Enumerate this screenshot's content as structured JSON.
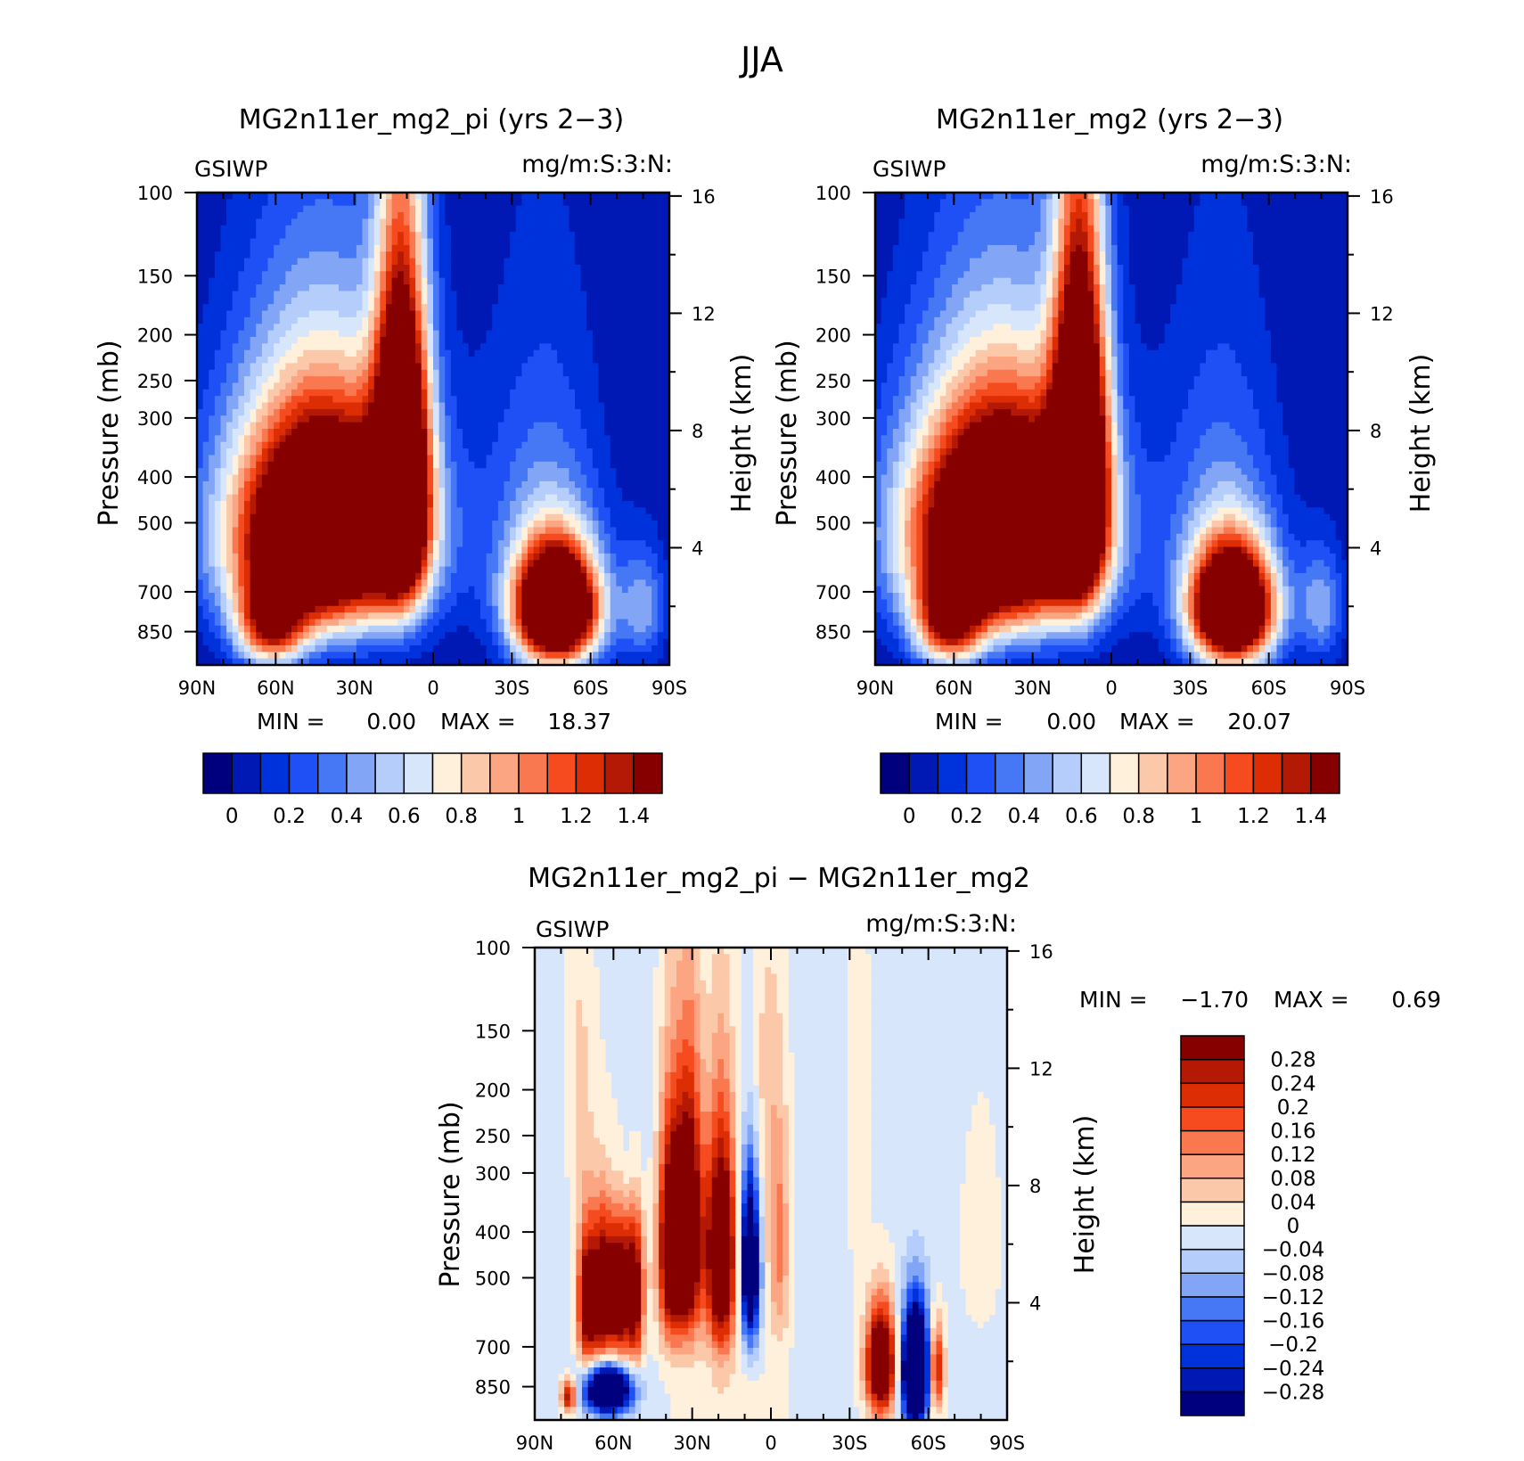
{
  "figure": {
    "title": "JJA"
  },
  "colors": {
    "abs": [
      "#00007f",
      "#0019b4",
      "#0032dc",
      "#1e50f5",
      "#4678f5",
      "#82a5f5",
      "#b4cdfa",
      "#d7e6fa",
      "#fff0dc",
      "#fcc8aa",
      "#fca582",
      "#fa7850",
      "#f54b1e",
      "#dc2d05",
      "#b41905",
      "#870000"
    ],
    "diff": [
      "#00007f",
      "#0019b4",
      "#0032dc",
      "#1e50f5",
      "#4678f5",
      "#82a5f5",
      "#b4cdfa",
      "#d7e6fa",
      "#fff0dc",
      "#fcc8aa",
      "#fca582",
      "#fa7850",
      "#f54b1e",
      "#dc2d05",
      "#b41905",
      "#870000"
    ]
  },
  "chart_data": [
    {
      "type": "contour",
      "title": "MG2n11er_mg2_pi (yrs 2−3)",
      "left_label": "GSIWP",
      "right_label": "mg/m:S:3:N:",
      "ylabel": "Pressure (mb)",
      "ylabel_right": "Height (km)",
      "x_tick_labels": [
        "90N",
        "60N",
        "30N",
        "0",
        "30S",
        "60S",
        "90S"
      ],
      "x_ticks_lat": [
        90,
        60,
        30,
        0,
        -30,
        -60,
        -90
      ],
      "y_tick_labels": [
        "100",
        "150",
        "200",
        "250",
        "300",
        "400",
        "500",
        "700",
        "850"
      ],
      "y_ticks_mb": [
        100,
        150,
        200,
        250,
        300,
        400,
        500,
        700,
        850
      ],
      "height_tick_labels": [
        "16",
        "12",
        "8",
        "4"
      ],
      "height_ticks_km": [
        16,
        12,
        8,
        4
      ],
      "ylim_mb": [
        100,
        1000
      ],
      "min_label": "MIN =",
      "min_value": "0.00",
      "max_label": "MAX =",
      "max_value": "18.37",
      "colorbar_labels": [
        "0",
        "0.2",
        "0.4",
        "0.6",
        "0.8",
        "1",
        "1.2",
        "1.4"
      ],
      "levels": [
        0,
        0.1,
        0.2,
        0.3,
        0.4,
        0.5,
        0.6,
        0.7,
        0.8,
        0.9,
        1,
        1.1,
        1.2,
        1.3,
        1.4
      ],
      "field": {
        "background": 0,
        "blobs": [
          {
            "lat": 42,
            "p": 520,
            "slat": 24,
            "sp": 200,
            "amp": 2.6
          },
          {
            "lat": 12,
            "p": 380,
            "slat": 7,
            "sp": 210,
            "amp": 2.2
          },
          {
            "lat": 62,
            "p": 820,
            "slat": 9,
            "sp": 120,
            "amp": 1.2
          },
          {
            "lat": -47,
            "p": 760,
            "slat": 11,
            "sp": 150,
            "amp": 2.6
          },
          {
            "lat": -42,
            "p": 480,
            "slat": 16,
            "sp": 250,
            "amp": 0.35
          },
          {
            "lat": -80,
            "p": 750,
            "slat": 6,
            "sp": 150,
            "amp": 0.45
          }
        ]
      }
    },
    {
      "type": "contour",
      "title": "MG2n11er_mg2 (yrs 2−3)",
      "left_label": "GSIWP",
      "right_label": "mg/m:S:3:N:",
      "ylabel": "Pressure (mb)",
      "ylabel_right": "Height (km)",
      "x_tick_labels": [
        "90N",
        "60N",
        "30N",
        "0",
        "30S",
        "60S",
        "90S"
      ],
      "x_ticks_lat": [
        90,
        60,
        30,
        0,
        -30,
        -60,
        -90
      ],
      "y_tick_labels": [
        "100",
        "150",
        "200",
        "250",
        "300",
        "400",
        "500",
        "700",
        "850"
      ],
      "y_ticks_mb": [
        100,
        150,
        200,
        250,
        300,
        400,
        500,
        700,
        850
      ],
      "height_tick_labels": [
        "16",
        "12",
        "8",
        "4"
      ],
      "height_ticks_km": [
        16,
        12,
        8,
        4
      ],
      "ylim_mb": [
        100,
        1000
      ],
      "min_label": "MIN =",
      "min_value": "0.00",
      "max_label": "MAX =",
      "max_value": "20.07",
      "colorbar_labels": [
        "0",
        "0.2",
        "0.4",
        "0.6",
        "0.8",
        "1",
        "1.2",
        "1.4"
      ],
      "levels": [
        0,
        0.1,
        0.2,
        0.3,
        0.4,
        0.5,
        0.6,
        0.7,
        0.8,
        0.9,
        1,
        1.1,
        1.2,
        1.3,
        1.4
      ],
      "field": {
        "background": 0,
        "blobs": [
          {
            "lat": 42,
            "p": 520,
            "slat": 24,
            "sp": 200,
            "amp": 2.7
          },
          {
            "lat": 12,
            "p": 370,
            "slat": 7,
            "sp": 215,
            "amp": 2.3
          },
          {
            "lat": 62,
            "p": 820,
            "slat": 9,
            "sp": 120,
            "amp": 1.2
          },
          {
            "lat": -46,
            "p": 760,
            "slat": 11,
            "sp": 150,
            "amp": 2.5
          },
          {
            "lat": -42,
            "p": 480,
            "slat": 16,
            "sp": 250,
            "amp": 0.35
          },
          {
            "lat": -80,
            "p": 750,
            "slat": 6,
            "sp": 150,
            "amp": 0.45
          }
        ]
      }
    },
    {
      "type": "contour",
      "title": "MG2n11er_mg2_pi − MG2n11er_mg2",
      "left_label": "GSIWP",
      "right_label": "mg/m:S:3:N:",
      "ylabel": "Pressure (mb)",
      "ylabel_right": "Height (km)",
      "x_tick_labels": [
        "90N",
        "60N",
        "30N",
        "0",
        "30S",
        "60S",
        "90S"
      ],
      "x_ticks_lat": [
        90,
        60,
        30,
        0,
        -30,
        -60,
        -90
      ],
      "y_tick_labels": [
        "100",
        "150",
        "200",
        "250",
        "300",
        "400",
        "500",
        "700",
        "850"
      ],
      "y_ticks_mb": [
        100,
        150,
        200,
        250,
        300,
        400,
        500,
        700,
        850
      ],
      "height_tick_labels": [
        "16",
        "12",
        "8",
        "4"
      ],
      "height_ticks_km": [
        16,
        12,
        8,
        4
      ],
      "ylim_mb": [
        100,
        1000
      ],
      "min_label": "MIN =",
      "min_value": "−1.70",
      "max_label": "MAX =",
      "max_value": "0.69",
      "colorbar_labels": [
        "0.28",
        "0.24",
        "0.2",
        "0.16",
        "0.12",
        "0.08",
        "0.04",
        "0",
        "−0.04",
        "−0.08",
        "−0.12",
        "−0.16",
        "−0.2",
        "−0.24",
        "−0.28"
      ],
      "levels": [
        -0.28,
        -0.24,
        -0.2,
        -0.16,
        -0.12,
        -0.08,
        -0.04,
        0,
        0.04,
        0.08,
        0.12,
        0.16,
        0.2,
        0.24,
        0.28
      ],
      "field": {
        "background": -0.015,
        "blobs": [
          {
            "lat": 70,
            "p": 560,
            "slat": 2.6,
            "sp": 140,
            "amp": 0.4
          },
          {
            "lat": 64,
            "p": 540,
            "slat": 2.6,
            "sp": 140,
            "amp": 0.4
          },
          {
            "lat": 58,
            "p": 540,
            "slat": 2.6,
            "sp": 140,
            "amp": 0.38
          },
          {
            "lat": 52,
            "p": 540,
            "slat": 2.6,
            "sp": 140,
            "amp": 0.38
          },
          {
            "lat": 38,
            "p": 430,
            "slat": 3.5,
            "sp": 160,
            "amp": 0.45
          },
          {
            "lat": 31,
            "p": 400,
            "slat": 3.5,
            "sp": 170,
            "amp": 0.45
          },
          {
            "lat": 19,
            "p": 450,
            "slat": 4,
            "sp": 170,
            "amp": 0.5
          },
          {
            "lat": 8,
            "p": 470,
            "slat": 2.5,
            "sp": 130,
            "amp": -0.5
          },
          {
            "lat": -3,
            "p": 430,
            "slat": 3,
            "sp": 180,
            "amp": 0.15
          },
          {
            "lat": 62,
            "p": 860,
            "slat": 6,
            "sp": 70,
            "amp": -0.6
          },
          {
            "lat": 77,
            "p": 890,
            "slat": 2,
            "sp": 50,
            "amp": 0.3
          },
          {
            "lat": -42,
            "p": 760,
            "slat": 4,
            "sp": 140,
            "amp": 0.5
          },
          {
            "lat": -55,
            "p": 780,
            "slat": 3.5,
            "sp": 150,
            "amp": -0.7
          },
          {
            "lat": -63,
            "p": 780,
            "slat": 2,
            "sp": 120,
            "amp": 0.3
          },
          {
            "lat": 73,
            "p": 180,
            "slat": 4,
            "sp": 100,
            "amp": 0.06
          },
          {
            "lat": 3,
            "p": 200,
            "slat": 4,
            "sp": 140,
            "amp": 0.06
          },
          {
            "lat": -33,
            "p": 220,
            "slat": 3,
            "sp": 160,
            "amp": 0.05
          },
          {
            "lat": -80,
            "p": 420,
            "slat": 5,
            "sp": 140,
            "amp": 0.05
          },
          {
            "lat": 55,
            "p": 300,
            "slat": 5,
            "sp": 60,
            "amp": -0.05
          },
          {
            "lat": 15,
            "p": 1000,
            "slat": 14,
            "sp": 150,
            "amp": 0.05
          }
        ]
      }
    }
  ]
}
